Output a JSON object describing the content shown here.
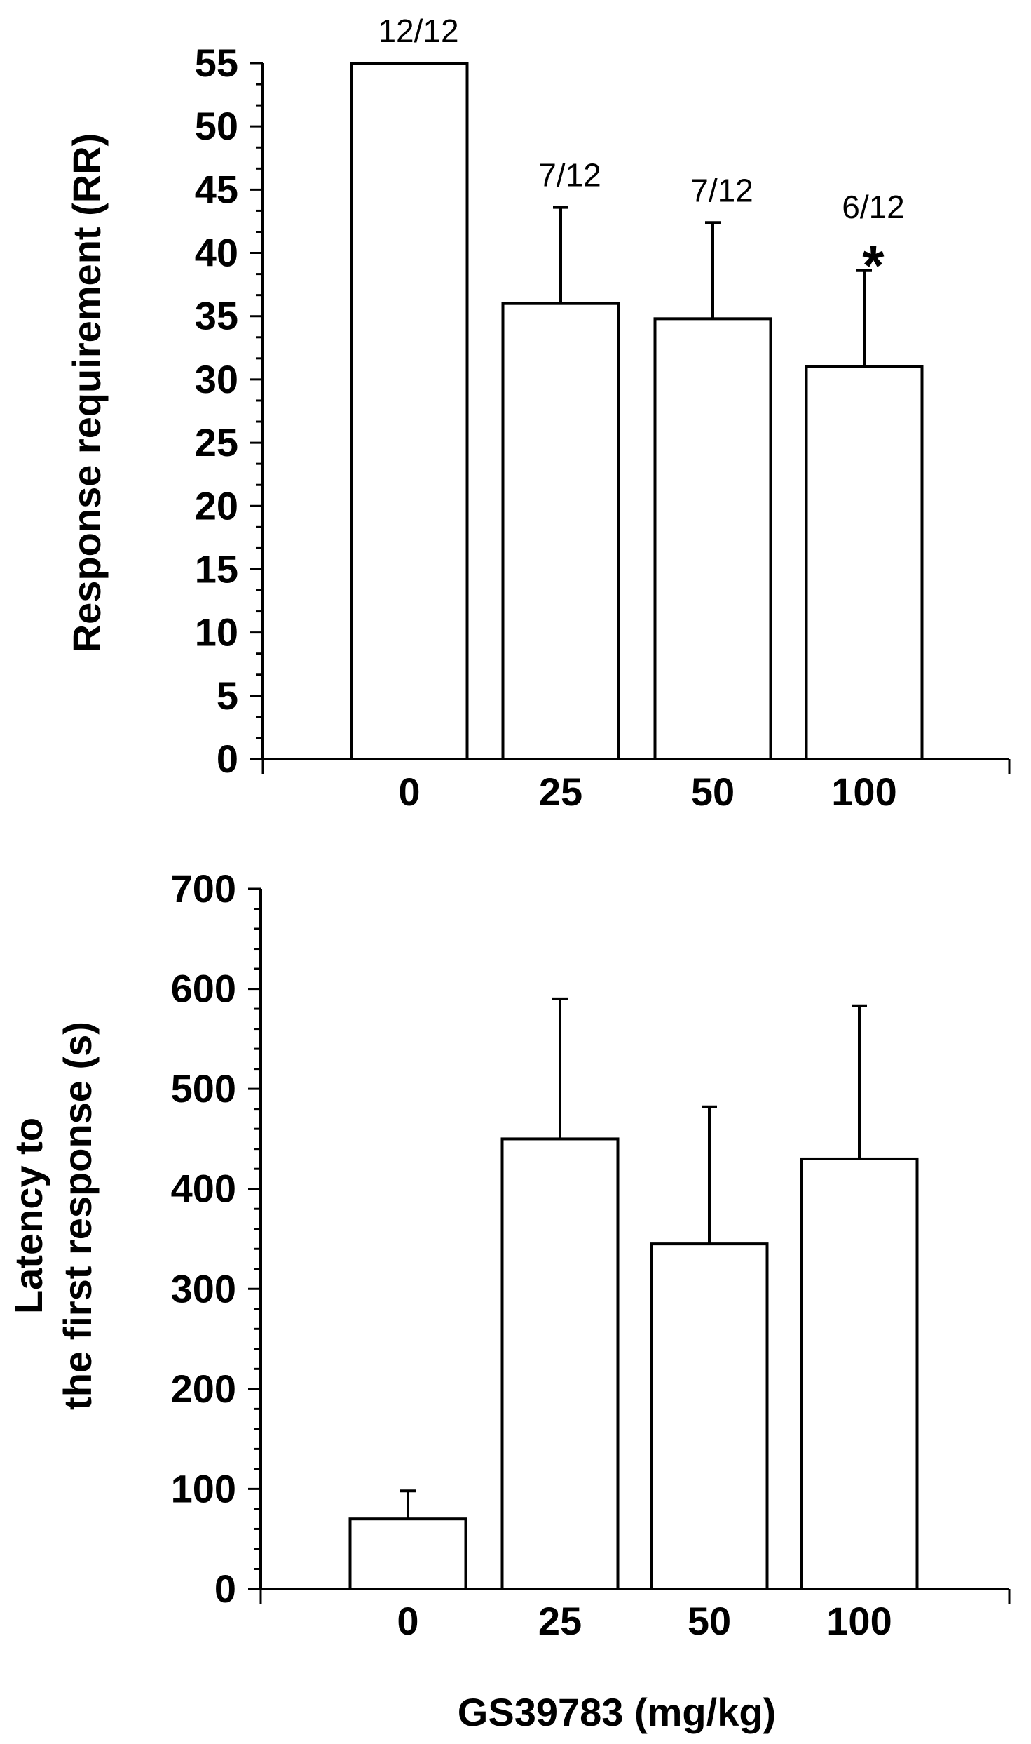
{
  "chart_data": [
    {
      "type": "bar",
      "categories": [
        "0",
        "25",
        "50",
        "100"
      ],
      "values": [
        55,
        36,
        34.8,
        31
      ],
      "error_plus": [
        0,
        7.6,
        7.6,
        7.6
      ],
      "annotations": [
        "12/12",
        "7/12",
        "7/12",
        "6/12"
      ],
      "significance": [
        "",
        "",
        "",
        "*"
      ],
      "ylabel": "Response requirement (RR)",
      "xlabel": "",
      "ylim": [
        0,
        55
      ],
      "yticks": [
        "0",
        "5",
        "10",
        "15",
        "20",
        "25",
        "30",
        "35",
        "40",
        "45",
        "50",
        "55"
      ],
      "grid": false
    },
    {
      "type": "bar",
      "categories": [
        "0",
        "25",
        "50",
        "100"
      ],
      "values": [
        70,
        450,
        345,
        430
      ],
      "error_plus": [
        28,
        140,
        137,
        153
      ],
      "ylabel_lines": [
        "Latency to",
        "the first response (s)"
      ],
      "xlabel": "GS39783 (mg/kg)",
      "ylim": [
        0,
        700
      ],
      "yticks": [
        "0",
        "100",
        "200",
        "300",
        "400",
        "500",
        "600",
        "700"
      ],
      "grid": false
    }
  ]
}
